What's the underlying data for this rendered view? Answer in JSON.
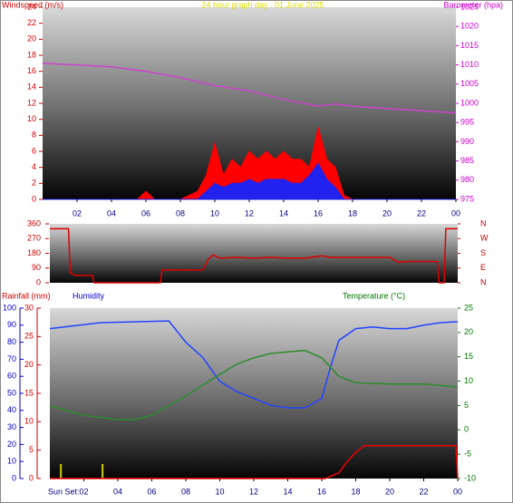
{
  "chart_data": [
    {
      "type": "line",
      "title": "24 hour graph day : 01 June 2025",
      "title_color": "#dddd00",
      "ylabel": "Windspeed (m/s)",
      "ycolor": "#cc0000",
      "y2label": "Barometer (hpa)",
      "y2color": "#cc00cc",
      "xlim": [
        0,
        24
      ],
      "xticks": [
        {
          "value": 2,
          "label": "02"
        },
        {
          "value": 4,
          "label": "04"
        },
        {
          "value": 6,
          "label": "06"
        },
        {
          "value": 8,
          "label": "08"
        },
        10,
        12,
        14,
        16,
        18,
        20,
        22,
        {
          "value": 24,
          "label": "00"
        }
      ],
      "ylim": [
        0,
        24
      ],
      "yticks": [
        0,
        2,
        4,
        6,
        8,
        10,
        12,
        14,
        16,
        18,
        20,
        22,
        24
      ],
      "y2lim": [
        975,
        1025
      ],
      "y2ticks": [
        975,
        980,
        985,
        990,
        995,
        1000,
        1005,
        1010,
        1015,
        1020,
        1025
      ],
      "series": [
        {
          "color": "#ff0000",
          "area": true,
          "x": [
            0,
            0.5,
            1,
            1.5,
            2,
            2.5,
            3,
            3.5,
            4,
            4.5,
            5,
            5.5,
            6,
            6.5,
            7,
            7.5,
            8,
            8.5,
            9,
            9.5,
            10,
            10.5,
            11,
            11.5,
            12,
            12.5,
            13,
            13.5,
            14,
            14.5,
            15,
            15.5,
            16,
            16.5,
            17,
            17.5,
            18,
            18.5,
            19,
            19.5,
            20,
            20.5,
            21,
            21.5,
            22,
            22.5,
            23,
            23.5,
            24
          ],
          "values": [
            0,
            0,
            0,
            0,
            0,
            0,
            0,
            0,
            0,
            0,
            0,
            0,
            1,
            0,
            0,
            0,
            0,
            0.5,
            1,
            3,
            7,
            3,
            5,
            4,
            6,
            5,
            6,
            5,
            6,
            5,
            5,
            4,
            9,
            5,
            4,
            0.5,
            0,
            0,
            0,
            0,
            0,
            0,
            0,
            0,
            0,
            0,
            0,
            0,
            0
          ]
        },
        {
          "color": "#2222ee",
          "area": true,
          "x": [
            0,
            0.5,
            1,
            1.5,
            2,
            2.5,
            3,
            3.5,
            4,
            4.5,
            5,
            5.5,
            6,
            6.5,
            7,
            7.5,
            8,
            8.5,
            9,
            9.5,
            10,
            10.5,
            11,
            11.5,
            12,
            12.5,
            13,
            13.5,
            14,
            14.5,
            15,
            15.5,
            16,
            16.5,
            17,
            17.5,
            18,
            18.5,
            19,
            19.5,
            20,
            20.5,
            21,
            21.5,
            22,
            22.5,
            23,
            23.5,
            24
          ],
          "values": [
            0,
            0,
            0,
            0,
            0,
            0,
            0,
            0,
            0,
            0,
            0,
            0,
            0,
            0,
            0,
            0,
            0,
            0,
            0,
            1,
            2,
            1.5,
            2,
            2,
            2.5,
            2,
            2.5,
            2.5,
            2.5,
            2,
            2,
            3,
            4.5,
            2.5,
            1.5,
            0,
            0,
            0,
            0,
            0,
            0,
            0,
            0,
            0,
            0,
            0,
            0,
            0,
            0
          ]
        },
        {
          "color": "#cc44cc",
          "axis": "y2",
          "x": [
            0,
            2,
            4,
            6,
            8,
            10,
            12,
            14,
            16,
            17,
            18,
            20,
            22,
            24
          ],
          "values": [
            1010.4,
            1010,
            1009.5,
            1008.3,
            1006.7,
            1004.6,
            1003.2,
            1001,
            999.3,
            999.8,
            999.3,
            998.6,
            998.1,
            997.5
          ]
        }
      ]
    },
    {
      "type": "line",
      "ycolor": "#cc0000",
      "y2color": "#cc0000",
      "xlim": [
        0,
        24
      ],
      "ylim": [
        0,
        360
      ],
      "yticks": [
        0,
        90,
        180,
        270,
        360
      ],
      "y2lim": [
        0,
        360
      ],
      "y2ticks": [
        {
          "value": 0,
          "label": "N"
        },
        {
          "value": 90,
          "label": "E"
        },
        {
          "value": 180,
          "label": "S"
        },
        {
          "value": 270,
          "label": "W"
        },
        {
          "value": 360,
          "label": "N"
        }
      ],
      "series": [
        {
          "color": "#dd0000",
          "x": [
            0,
            1.1,
            1.2,
            1.5,
            2.5,
            2.6,
            6.5,
            6.6,
            9,
            9.3,
            9.6,
            10,
            11,
            12,
            13,
            14,
            15,
            16,
            16.5,
            18,
            20,
            20.5,
            21,
            22.8,
            22.9,
            23.2,
            23.3,
            24
          ],
          "values": [
            330,
            330,
            60,
            45,
            45,
            0,
            0,
            78,
            78,
            140,
            170,
            150,
            155,
            150,
            155,
            150,
            150,
            165,
            155,
            155,
            155,
            125,
            130,
            130,
            0,
            0,
            330,
            330
          ]
        }
      ]
    },
    {
      "type": "line",
      "ylabel": "Humidity",
      "ycolor": "#0000cc",
      "y3label": "Rainfall (mm)",
      "y3color": "#cc0000",
      "y2label": "Temperature (°C)",
      "y2color": "#007700",
      "sunset_label": "Sun Set:",
      "sunset_x": [
        0.65,
        3.1
      ],
      "xlim": [
        0,
        24
      ],
      "xticks": [
        {
          "value": 2,
          "label": "02"
        },
        {
          "value": 4,
          "label": "04"
        },
        {
          "value": 6,
          "label": "06"
        },
        {
          "value": 8,
          "label": "08"
        },
        10,
        12,
        14,
        16,
        18,
        20,
        22,
        {
          "value": 24,
          "label": "00"
        }
      ],
      "ylim": [
        0,
        100
      ],
      "yticks": [
        0,
        10,
        20,
        30,
        40,
        50,
        60,
        70,
        80,
        90,
        100
      ],
      "y3lim": [
        0,
        30
      ],
      "y3ticks": [
        0,
        5,
        10,
        15,
        20,
        25,
        30
      ],
      "y2lim": [
        -10,
        25
      ],
      "y2ticks": [
        -10,
        -5,
        0,
        5,
        10,
        15,
        20,
        25
      ],
      "series": [
        {
          "color": "#2244ff",
          "x": [
            0,
            3,
            7,
            8,
            9,
            10,
            11,
            12,
            13,
            14,
            15,
            16,
            16.5,
            17,
            18,
            19,
            20,
            21,
            22,
            23,
            24
          ],
          "values": [
            88,
            91.5,
            92.5,
            80,
            71,
            57,
            51,
            47,
            43,
            41.5,
            41.5,
            47,
            65,
            81,
            88,
            89,
            88,
            88,
            90,
            91.5,
            92
          ]
        },
        {
          "color": "#2e8b2e",
          "axis": "y2",
          "x": [
            0,
            2,
            4,
            5,
            6,
            7,
            8,
            9,
            10,
            11,
            12,
            13,
            14,
            15,
            16,
            17,
            18,
            20,
            22,
            24
          ],
          "values": [
            4.9,
            3,
            2.1,
            2.1,
            3,
            5,
            7,
            9.2,
            11.4,
            13.5,
            14.8,
            15.7,
            16,
            16.3,
            14.8,
            11,
            9.7,
            9.4,
            9.4,
            8.8
          ]
        },
        {
          "color": "#ee0000",
          "axis": "y3",
          "x": [
            0,
            16.2,
            17,
            17.5,
            18,
            18.5,
            23.9,
            24
          ],
          "values": [
            0,
            0,
            1,
            3,
            4.6,
            5.8,
            5.8,
            0
          ]
        }
      ]
    }
  ]
}
